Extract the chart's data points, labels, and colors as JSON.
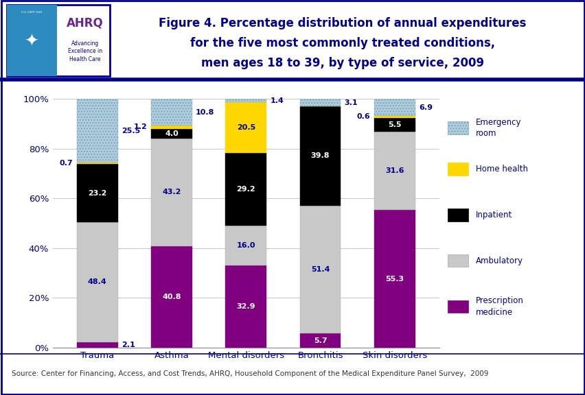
{
  "categories": [
    "Trauma",
    "Asthma",
    "Mental disorders",
    "Bronchitis",
    "Skin disorders"
  ],
  "series": {
    "Prescription medicine": [
      2.1,
      40.8,
      32.9,
      5.7,
      55.3
    ],
    "Ambulatory": [
      48.4,
      43.2,
      16.0,
      51.4,
      31.6
    ],
    "Inpatient": [
      23.2,
      4.0,
      29.2,
      39.8,
      5.5
    ],
    "Home health": [
      0.7,
      1.2,
      20.5,
      0.0,
      0.6
    ],
    "Emergency room": [
      25.5,
      10.8,
      1.4,
      3.1,
      6.9
    ]
  },
  "colors": {
    "Prescription medicine": "#800080",
    "Ambulatory": "#C8C8C8",
    "Inpatient": "#000000",
    "Home health": "#FFD700",
    "Emergency room": "#B0CCDD"
  },
  "label_colors": {
    "Prescription medicine": "white",
    "Ambulatory": "#00008B",
    "Inpatient": "white",
    "Home health": "#00008B",
    "Emergency room": "#00008B"
  },
  "labels": {
    "Prescription medicine": [
      2.1,
      40.8,
      32.9,
      5.7,
      55.3
    ],
    "Ambulatory": [
      48.4,
      43.2,
      16.0,
      51.4,
      31.6
    ],
    "Inpatient": [
      23.2,
      4.0,
      29.2,
      39.8,
      5.5
    ],
    "Home health": [
      0.7,
      1.2,
      20.5,
      null,
      0.6
    ],
    "Emergency room": [
      25.5,
      10.8,
      1.4,
      3.1,
      6.9
    ]
  },
  "title_line1": "Figure 4. Percentage distribution of annual expenditures",
  "title_line2": "for the five most commonly treated conditions,",
  "title_line3": "men ages 18 to 39, by type of service, 2009",
  "source": "Source: Center for Financing, Access, and Cost Trends, AHRQ, Household Component of the Medical Expenditure Panel Survey,  2009",
  "ylim": [
    0,
    100
  ],
  "yticks": [
    0,
    20,
    40,
    60,
    80,
    100
  ],
  "yticklabels": [
    "0%",
    "20%",
    "40%",
    "60%",
    "80%",
    "100%"
  ],
  "bg_color": "#FFFFFF",
  "bar_width": 0.55,
  "series_order": [
    "Prescription medicine",
    "Ambulatory",
    "Inpatient",
    "Home health",
    "Emergency room"
  ],
  "legend_order": [
    "Emergency room",
    "Home health",
    "Inpatient",
    "Ambulatory",
    "Prescription medicine"
  ]
}
